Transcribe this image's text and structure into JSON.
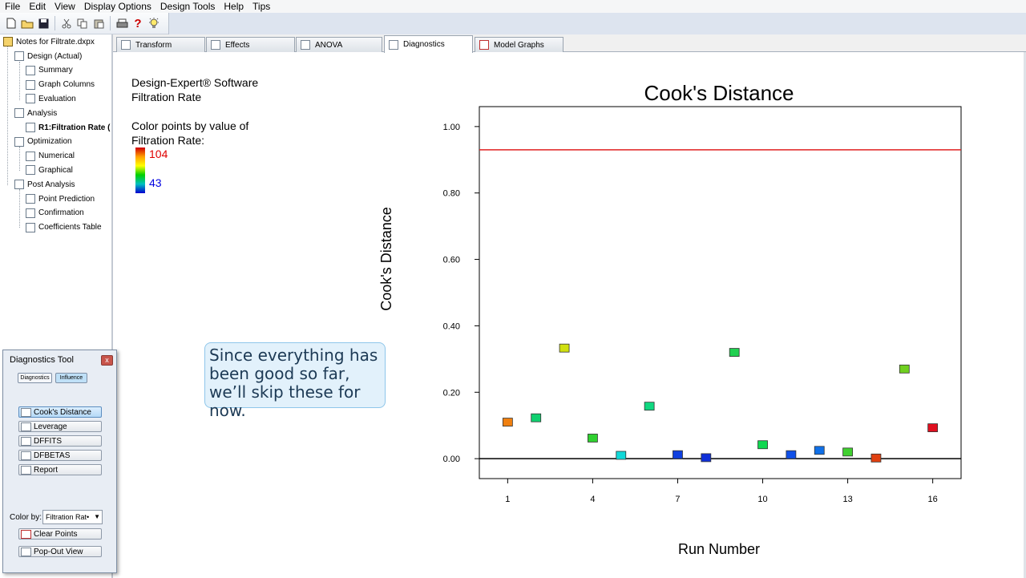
{
  "menu": [
    "File",
    "Edit",
    "View",
    "Display Options",
    "Design Tools",
    "Help",
    "Tips"
  ],
  "toolbar_icons": [
    "new-file-icon",
    "open-folder-icon",
    "save-icon",
    "cut-icon",
    "copy-icon",
    "paste-icon",
    "print-icon",
    "help-icon",
    "tip-bulb-icon"
  ],
  "tree": {
    "root": "Notes for Filtrate.dxpx",
    "items": [
      {
        "label": "Design (Actual)",
        "level": 1,
        "bold": false
      },
      {
        "label": "Summary",
        "level": 2,
        "bold": false
      },
      {
        "label": "Graph Columns",
        "level": 2,
        "bold": false
      },
      {
        "label": "Evaluation",
        "level": 2,
        "bold": false
      },
      {
        "label": "Analysis",
        "level": 1,
        "bold": false
      },
      {
        "label": "R1:Filtration Rate (",
        "level": 2,
        "bold": true
      },
      {
        "label": "Optimization",
        "level": 1,
        "bold": false
      },
      {
        "label": "Numerical",
        "level": 2,
        "bold": false
      },
      {
        "label": "Graphical",
        "level": 2,
        "bold": false
      },
      {
        "label": "Post Analysis",
        "level": 1,
        "bold": false
      },
      {
        "label": "Point Prediction",
        "level": 2,
        "bold": false
      },
      {
        "label": "Confirmation",
        "level": 2,
        "bold": false
      },
      {
        "label": "Coefficients Table",
        "level": 2,
        "bold": false
      }
    ]
  },
  "diagnostics_tool": {
    "title": "Diagnostics Tool",
    "close": "x",
    "tabs": [
      "Diagnostics",
      "Influence"
    ],
    "buttons": [
      "Cook's Distance",
      "Leverage",
      "DFFITS",
      "DFBETAS",
      "Report"
    ],
    "color_by_label": "Color by:",
    "color_by_value": "Filtration Rat•",
    "clear_points": "Clear Points",
    "pop_out": "Pop-Out View"
  },
  "tabs": [
    "Transform",
    "Effects",
    "ANOVA",
    "Diagnostics",
    "Model Graphs"
  ],
  "active_tab": "Diagnostics",
  "legend": {
    "software": "Design-Expert® Software",
    "response": "Filtration Rate",
    "color_line1": "Color points by value of",
    "color_line2": "Filtration Rate:",
    "high": "104",
    "low": "43",
    "high_color": "#e00000",
    "low_color": "#0000e0"
  },
  "callout": "Since everything has been good so far, we’ll skip these for now.",
  "chart_data": {
    "type": "scatter",
    "title": "Cook's Distance",
    "xlabel": "Run Number",
    "ylabel": "Cook's Distance",
    "xlim": [
      0,
      17
    ],
    "ylim": [
      -0.06,
      1.06
    ],
    "xticks": [
      "1",
      "4",
      "7",
      "10",
      "13",
      "16"
    ],
    "yticks": [
      "0.00",
      "0.20",
      "0.40",
      "0.60",
      "0.80",
      "1.00"
    ],
    "threshold": 0.93,
    "threshold_color": "#e02020",
    "points": [
      {
        "x": 1,
        "y": 0.11,
        "color": "#f08010"
      },
      {
        "x": 2,
        "y": 0.123,
        "color": "#10d070"
      },
      {
        "x": 3,
        "y": 0.333,
        "color": "#d0e010"
      },
      {
        "x": 4,
        "y": 0.062,
        "color": "#30d030"
      },
      {
        "x": 5,
        "y": 0.01,
        "color": "#10d8d8"
      },
      {
        "x": 6,
        "y": 0.158,
        "color": "#10d880"
      },
      {
        "x": 7,
        "y": 0.012,
        "color": "#1040e0"
      },
      {
        "x": 8,
        "y": 0.003,
        "color": "#1030d8"
      },
      {
        "x": 9,
        "y": 0.32,
        "color": "#20d050"
      },
      {
        "x": 10,
        "y": 0.042,
        "color": "#10d850"
      },
      {
        "x": 11,
        "y": 0.012,
        "color": "#1050e8"
      },
      {
        "x": 12,
        "y": 0.025,
        "color": "#1070e8"
      },
      {
        "x": 13,
        "y": 0.02,
        "color": "#40d030"
      },
      {
        "x": 14,
        "y": 0.002,
        "color": "#e04010"
      },
      {
        "x": 15,
        "y": 0.27,
        "color": "#70d020"
      },
      {
        "x": 16,
        "y": 0.093,
        "color": "#e01020"
      }
    ]
  }
}
